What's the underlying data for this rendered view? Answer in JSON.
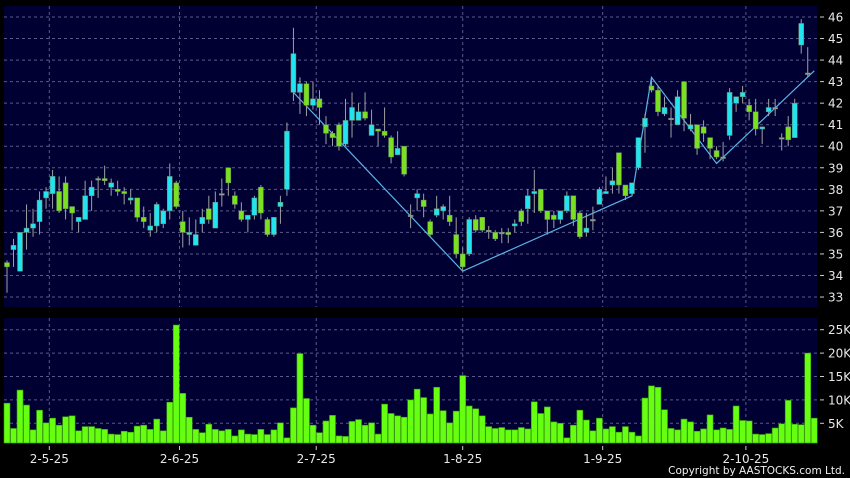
{
  "chart_data": [
    {
      "type": "candlestick",
      "panel": "price",
      "ylim": [
        33,
        46
      ],
      "yticks": [
        33,
        34,
        35,
        36,
        37,
        38,
        39,
        40,
        41,
        42,
        43,
        44,
        45,
        46
      ],
      "grid": true,
      "axis_side": "right",
      "colors": {
        "background": "#000033",
        "up": "#22e4f0",
        "down": "#7ae020",
        "flat": "#a0a0a0",
        "wick": "#a0a0a0",
        "grid": "#5a5a8a",
        "trendline": "#5ab4e8"
      },
      "candles": [
        [
          34.6,
          34.7,
          33.2,
          34.4
        ],
        [
          35.2,
          35.7,
          34.4,
          35.4
        ],
        [
          34.2,
          36.0,
          34.2,
          36.0
        ],
        [
          36.0,
          37.3,
          35.2,
          36.2
        ],
        [
          36.2,
          37.1,
          35.8,
          36.4
        ],
        [
          36.5,
          37.9,
          35.9,
          37.5
        ],
        [
          37.6,
          38.1,
          37.1,
          37.9
        ],
        [
          37.8,
          38.9,
          37.1,
          38.6
        ],
        [
          37.9,
          38.6,
          36.9,
          37.0
        ],
        [
          38.3,
          38.6,
          36.6,
          37.1
        ],
        [
          37.2,
          37.2,
          36.1,
          36.9
        ],
        [
          36.5,
          36.7,
          36.0,
          36.7
        ],
        [
          36.6,
          38.4,
          36.6,
          37.7
        ],
        [
          37.7,
          38.4,
          37.0,
          38.1
        ],
        [
          38.5,
          38.6,
          37.6,
          38.5
        ],
        [
          38.5,
          39.1,
          38.2,
          38.4
        ],
        [
          38.1,
          38.5,
          37.7,
          38.3
        ],
        [
          38.0,
          38.4,
          37.7,
          37.9
        ],
        [
          37.9,
          38.1,
          37.3,
          37.8
        ],
        [
          37.5,
          38.0,
          37.3,
          37.6
        ],
        [
          37.6,
          37.6,
          36.5,
          36.7
        ],
        [
          36.7,
          37.2,
          36.2,
          36.5
        ],
        [
          36.1,
          36.9,
          35.8,
          36.3
        ],
        [
          36.3,
          37.4,
          36.0,
          37.3
        ],
        [
          36.4,
          37.1,
          36.2,
          37.0
        ],
        [
          37.0,
          39.2,
          36.6,
          38.6
        ],
        [
          38.3,
          38.4,
          37.1,
          37.2
        ],
        [
          36.5,
          37.0,
          35.3,
          36.0
        ],
        [
          35.9,
          36.7,
          35.4,
          36.0
        ],
        [
          35.4,
          36.6,
          35.4,
          35.9
        ],
        [
          36.4,
          37.1,
          36.0,
          36.7
        ],
        [
          37.1,
          37.7,
          36.4,
          36.6
        ],
        [
          36.2,
          37.9,
          36.2,
          37.4
        ],
        [
          37.8,
          38.5,
          37.2,
          37.8
        ],
        [
          39.0,
          39.0,
          37.7,
          38.3
        ],
        [
          37.7,
          37.9,
          37.1,
          37.3
        ],
        [
          37.0,
          37.4,
          36.5,
          36.6
        ],
        [
          36.6,
          36.8,
          36.0,
          36.8
        ],
        [
          36.8,
          37.7,
          36.6,
          37.6
        ],
        [
          38.1,
          38.2,
          36.6,
          36.9
        ],
        [
          36.6,
          36.7,
          35.8,
          35.9
        ],
        [
          35.9,
          36.7,
          35.8,
          36.7
        ],
        [
          37.2,
          37.7,
          36.4,
          37.4
        ],
        [
          38.0,
          41.1,
          37.7,
          40.7
        ],
        [
          42.5,
          45.5,
          42.1,
          44.3
        ],
        [
          42.5,
          43.2,
          41.5,
          42.9
        ],
        [
          42.9,
          43.0,
          41.4,
          41.9
        ],
        [
          41.9,
          43.0,
          41.7,
          42.2
        ],
        [
          42.2,
          42.6,
          41.0,
          41.8
        ],
        [
          41.0,
          41.4,
          40.1,
          40.6
        ],
        [
          40.6,
          40.7,
          40.0,
          40.4
        ],
        [
          41.0,
          41.1,
          39.8,
          40.0
        ],
        [
          40.1,
          42.2,
          40.0,
          41.2
        ],
        [
          41.2,
          42.5,
          40.4,
          41.8
        ],
        [
          41.2,
          42.0,
          41.2,
          41.6
        ],
        [
          41.6,
          42.5,
          41.2,
          41.3
        ],
        [
          40.5,
          41.7,
          40.5,
          41.0
        ],
        [
          40.8,
          40.8,
          40.0,
          40.7
        ],
        [
          40.7,
          41.8,
          40.4,
          40.5
        ],
        [
          40.4,
          40.5,
          39.2,
          39.5
        ],
        [
          39.6,
          40.7,
          39.6,
          39.9
        ],
        [
          40.0,
          40.0,
          38.6,
          38.7
        ],
        [
          36.8,
          37.3,
          36.2,
          36.8
        ],
        [
          37.6,
          38.0,
          37.0,
          37.8
        ],
        [
          37.5,
          37.8,
          36.7,
          37.2
        ],
        [
          36.5,
          36.6,
          35.8,
          35.9
        ],
        [
          36.8,
          37.7,
          36.7,
          37.1
        ],
        [
          37.0,
          37.3,
          36.6,
          37.2
        ],
        [
          36.8,
          37.7,
          36.3,
          36.5
        ],
        [
          35.9,
          36.7,
          34.8,
          35.0
        ],
        [
          35.0,
          35.3,
          34.2,
          34.4
        ],
        [
          35.0,
          36.7,
          34.9,
          36.6
        ],
        [
          36.6,
          36.8,
          36.0,
          36.1
        ],
        [
          36.7,
          36.7,
          36.0,
          36.1
        ],
        [
          36.1,
          36.3,
          35.7,
          36.1
        ],
        [
          36.0,
          36.1,
          35.6,
          35.7
        ],
        [
          36.0,
          36.2,
          35.5,
          36.0
        ],
        [
          36.0,
          36.2,
          35.5,
          35.9
        ],
        [
          36.3,
          36.6,
          36.0,
          36.4
        ],
        [
          37.0,
          37.1,
          36.3,
          36.5
        ],
        [
          37.1,
          38.0,
          36.4,
          37.7
        ],
        [
          37.8,
          38.9,
          36.9,
          37.9
        ],
        [
          38.0,
          38.0,
          36.9,
          37.0
        ],
        [
          37.0,
          37.0,
          35.9,
          36.6
        ],
        [
          36.8,
          37.0,
          36.2,
          36.6
        ],
        [
          36.6,
          37.0,
          36.4,
          37.0
        ],
        [
          37.0,
          37.9,
          36.9,
          37.7
        ],
        [
          37.7,
          37.7,
          36.3,
          36.6
        ],
        [
          36.9,
          37.0,
          35.7,
          35.8
        ],
        [
          36.0,
          36.9,
          35.8,
          36.2
        ],
        [
          36.6,
          37.2,
          36.1,
          36.6
        ],
        [
          37.3,
          38.1,
          37.3,
          38.0
        ],
        [
          37.8,
          38.6,
          37.8,
          37.9
        ],
        [
          38.2,
          39.0,
          37.8,
          38.4
        ],
        [
          39.7,
          39.7,
          37.8,
          38.2
        ],
        [
          38.2,
          38.2,
          37.5,
          37.7
        ],
        [
          37.8,
          38.3,
          37.7,
          38.3
        ],
        [
          39.0,
          40.4,
          38.9,
          40.4
        ],
        [
          40.9,
          41.5,
          39.7,
          41.3
        ],
        [
          42.8,
          43.2,
          42.5,
          42.6
        ],
        [
          42.6,
          42.8,
          41.4,
          41.6
        ],
        [
          41.5,
          42.3,
          41.4,
          41.8
        ],
        [
          41.3,
          41.8,
          40.4,
          41.3
        ],
        [
          41.0,
          42.6,
          41.0,
          42.3
        ],
        [
          43.0,
          43.0,
          40.7,
          41.3
        ],
        [
          40.8,
          41.5,
          40.7,
          41.0
        ],
        [
          41.0,
          41.0,
          39.6,
          39.9
        ],
        [
          40.9,
          41.2,
          40.2,
          40.6
        ],
        [
          40.4,
          40.4,
          39.4,
          39.9
        ],
        [
          39.8,
          40.0,
          39.4,
          39.5
        ],
        [
          39.5,
          40.2,
          39.3,
          39.5
        ],
        [
          40.5,
          42.7,
          40.3,
          42.5
        ],
        [
          42.0,
          42.3,
          41.6,
          42.3
        ],
        [
          42.3,
          42.8,
          42.0,
          42.5
        ],
        [
          41.9,
          42.2,
          41.2,
          41.6
        ],
        [
          41.6,
          42.2,
          40.5,
          40.8
        ],
        [
          40.8,
          40.9,
          40.1,
          40.9
        ],
        [
          41.6,
          42.2,
          41.4,
          41.8
        ],
        [
          41.8,
          42.2,
          41.4,
          41.8
        ],
        [
          40.4,
          40.6,
          39.8,
          40.4
        ],
        [
          40.9,
          41.4,
          40.0,
          40.3
        ],
        [
          40.4,
          42.2,
          40.4,
          42.0
        ],
        [
          44.7,
          45.9,
          44.3,
          45.7
        ],
        [
          43.4,
          44.6,
          43.2,
          43.4
        ]
      ],
      "candle_format": [
        "open",
        "high",
        "low",
        "close"
      ],
      "trendline": [
        [
          44,
          42.5
        ],
        [
          70,
          34.2
        ],
        [
          96,
          37.7
        ],
        [
          99,
          43.2
        ],
        [
          109,
          39.2
        ],
        [
          124,
          43.5
        ]
      ]
    },
    {
      "type": "bar",
      "panel": "volume",
      "ylim": [
        0,
        26000
      ],
      "ytick_labels": [
        "5K",
        "10K",
        "15K",
        "20K",
        "25K"
      ],
      "ytick_values": [
        5000,
        10000,
        15000,
        20000,
        25000
      ],
      "grid": true,
      "colors": {
        "bar": "#66ff11",
        "bar_edge": "#3a9a10"
      },
      "values_k": [
        9.3,
        3.9,
        12.1,
        8.9,
        3.6,
        7.8,
        5.1,
        6.1,
        4.6,
        6.4,
        6.6,
        3.4,
        4.3,
        4.3,
        3.9,
        3.7,
        2.7,
        2.6,
        3.3,
        3.1,
        4.4,
        4.6,
        3.7,
        5.9,
        3.4,
        9.5,
        26.0,
        11.4,
        6.3,
        3.7,
        3.0,
        4.8,
        3.7,
        3.4,
        3.7,
        2.3,
        3.6,
        2.7,
        2.6,
        3.7,
        2.6,
        3.6,
        5.1,
        1.9,
        8.3,
        19.9,
        10.3,
        4.6,
        3.0,
        5.5,
        6.7,
        2.3,
        2.2,
        5.4,
        5.8,
        4.6,
        5.1,
        2.7,
        9.1,
        7.1,
        6.6,
        6.3,
        10.0,
        12.3,
        10.5,
        7.0,
        12.7,
        7.7,
        5.1,
        7.6,
        15.2,
        8.7,
        8.1,
        6.6,
        4.3,
        3.9,
        4.1,
        3.6,
        3.6,
        4.1,
        3.8,
        9.6,
        7.1,
        8.5,
        5.3,
        5.0,
        1.9,
        4.6,
        7.8,
        5.7,
        3.4,
        6.1,
        3.8,
        4.3,
        3.1,
        4.3,
        3.1,
        2.3,
        10.4,
        13.0,
        12.7,
        7.9,
        3.9,
        3.6,
        5.9,
        5.3,
        3.3,
        3.8,
        6.8,
        3.6,
        4.0,
        3.7,
        8.7,
        5.6,
        5.5,
        2.7,
        2.6,
        2.8,
        4.0,
        4.9,
        9.9,
        4.8,
        4.7,
        20.0,
        6.1
      ]
    }
  ],
  "x_axis": {
    "labels": [
      {
        "text": "2-5-25",
        "at_candle": 6.5
      },
      {
        "text": "2-6-25",
        "at_candle": 26.5
      },
      {
        "text": "2-7-25",
        "at_candle": 47.5
      },
      {
        "text": "1-8-25",
        "at_candle": 70
      },
      {
        "text": "1-9-25",
        "at_candle": 91.5
      },
      {
        "text": "2-10-25",
        "at_candle": 113.5
      }
    ]
  },
  "copyright": "Copyright by AASTOCKS.com Ltd."
}
